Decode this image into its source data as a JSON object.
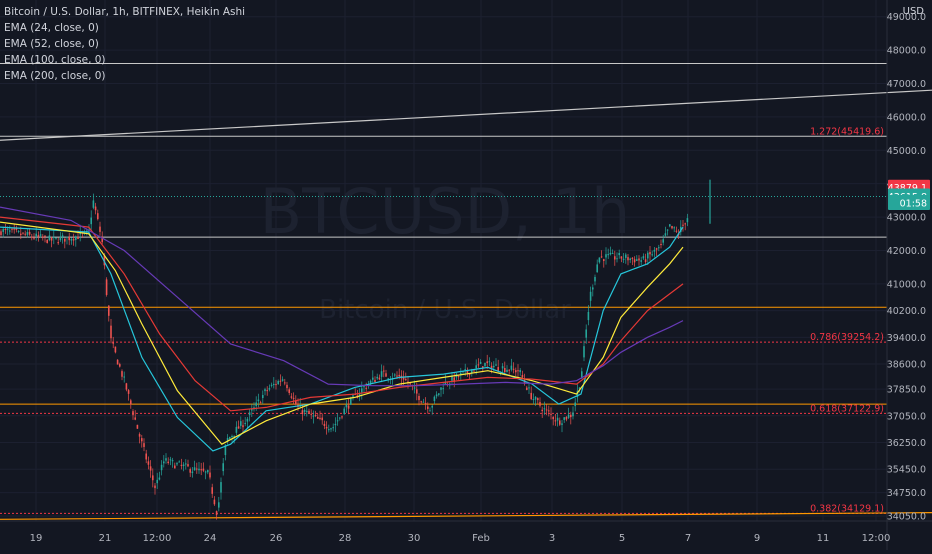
{
  "legend": {
    "title": "Bitcoin / U.S. Dollar, 1h, BITFINEX, Heikin Ashi",
    "ema1": "EMA (24, close, 0)",
    "ema2": "EMA (52, close, 0)",
    "ema3": "EMA (100, close, 0)",
    "ema4": "EMA (200, close, 0)"
  },
  "currency": "USD",
  "watermark": {
    "symbol": "BTCUSD, 1h",
    "name": "Bitcoin / U.S. Dollar"
  },
  "colors": {
    "background": "#131722",
    "up": "#26a69a",
    "down": "#ef5350",
    "ema24": "#26c6da",
    "ema52": "#ffeb3b",
    "ema100": "#e53935",
    "ema200": "#673ab7",
    "fib_orange": "#ff9800",
    "fib_red": "#f23645",
    "hline": "#c8c8c8"
  },
  "price_badges": [
    {
      "label": "43879.1",
      "value": 43879.1,
      "color": "#f23645"
    },
    {
      "label": "43615.8",
      "value": 43615.8,
      "color": "#26a69a"
    },
    {
      "label": "01:58",
      "value": 43420,
      "color": "#26a69a"
    }
  ],
  "fib_labels": [
    {
      "text": "1.272(45419.6)",
      "value": 45419.6
    },
    {
      "text": "0.786(39254.2)",
      "value": 39254.2
    },
    {
      "text": "0.618(37122.9)",
      "value": 37122.9
    },
    {
      "text": "0.382(34129.1)",
      "value": 34129.1
    }
  ],
  "chart_data": {
    "type": "candlestick",
    "title": "Bitcoin / U.S. Dollar, 1h, BITFINEX, Heikin Ashi",
    "ylim": [
      33900,
      49500
    ],
    "y_ticks": [
      "49000.0",
      "48000.0",
      "47000.0",
      "46000.0",
      "45000.0",
      "44000.0",
      "43000.0",
      "42000.0",
      "41000.0",
      "40200.0",
      "39400.0",
      "38600.0",
      "37850.0",
      "37050.0",
      "36250.0",
      "35450.0",
      "34750.0",
      "34050.0"
    ],
    "x_ticks": [
      "19",
      "21",
      "12:00",
      "24",
      "26",
      "28",
      "30",
      "Feb",
      "3",
      "5",
      "7",
      "9",
      "11",
      "12:00"
    ],
    "horizontal_lines": [
      {
        "value": 47600,
        "style": "solid",
        "color": "hline"
      },
      {
        "value": 45419.6,
        "style": "solid",
        "color": "hline"
      },
      {
        "value": 42400,
        "style": "solid",
        "color": "hline"
      },
      {
        "value": 40300,
        "style": "solid",
        "color": "fib_orange"
      },
      {
        "value": 39254.2,
        "style": "dotted",
        "color": "fib_red"
      },
      {
        "value": 37400,
        "style": "solid",
        "color": "fib_orange"
      },
      {
        "value": 37122.9,
        "style": "dotted",
        "color": "fib_red"
      },
      {
        "value": 34129.1,
        "style": "dotted",
        "color": "fib_red"
      }
    ],
    "trend_lines": [
      {
        "x0": 0,
        "y0": 45300,
        "x1": 1,
        "y1": 46800,
        "color": "hline"
      },
      {
        "x0": 0,
        "y0": 33950,
        "x1": 1,
        "y1": 34150,
        "color": "fib_orange"
      }
    ],
    "current_price": 43615.8,
    "price_path": [
      [
        0,
        42600
      ],
      [
        0.06,
        42300
      ],
      [
        0.1,
        42500
      ],
      [
        0.105,
        43500
      ],
      [
        0.115,
        42300
      ],
      [
        0.125,
        39300
      ],
      [
        0.14,
        38100
      ],
      [
        0.16,
        36200
      ],
      [
        0.175,
        34900
      ],
      [
        0.185,
        35700
      ],
      [
        0.21,
        35500
      ],
      [
        0.235,
        35300
      ],
      [
        0.245,
        34100
      ],
      [
        0.255,
        36300
      ],
      [
        0.28,
        37000
      ],
      [
        0.3,
        37800
      ],
      [
        0.32,
        38200
      ],
      [
        0.335,
        37300
      ],
      [
        0.36,
        36900
      ],
      [
        0.375,
        36700
      ],
      [
        0.39,
        37300
      ],
      [
        0.41,
        37900
      ],
      [
        0.43,
        38300
      ],
      [
        0.455,
        38200
      ],
      [
        0.47,
        37700
      ],
      [
        0.485,
        37300
      ],
      [
        0.5,
        38000
      ],
      [
        0.53,
        38400
      ],
      [
        0.545,
        38600
      ],
      [
        0.565,
        38500
      ],
      [
        0.585,
        38400
      ],
      [
        0.6,
        37600
      ],
      [
        0.615,
        37200
      ],
      [
        0.63,
        36900
      ],
      [
        0.645,
        37100
      ],
      [
        0.655,
        38200
      ],
      [
        0.665,
        40600
      ],
      [
        0.675,
        41800
      ],
      [
        0.7,
        41800
      ],
      [
        0.725,
        41700
      ],
      [
        0.745,
        42100
      ],
      [
        0.755,
        42700
      ],
      [
        0.765,
        42500
      ],
      [
        0.775,
        43000
      ]
    ],
    "series": [
      {
        "name": "EMA (24, close, 0)",
        "color": "ema24",
        "points": [
          [
            0,
            42700
          ],
          [
            0.1,
            42550
          ],
          [
            0.125,
            41300
          ],
          [
            0.16,
            38800
          ],
          [
            0.2,
            37000
          ],
          [
            0.24,
            36000
          ],
          [
            0.26,
            36200
          ],
          [
            0.3,
            37200
          ],
          [
            0.35,
            37400
          ],
          [
            0.4,
            37900
          ],
          [
            0.45,
            38200
          ],
          [
            0.5,
            38300
          ],
          [
            0.55,
            38500
          ],
          [
            0.6,
            38000
          ],
          [
            0.63,
            37400
          ],
          [
            0.655,
            37700
          ],
          [
            0.68,
            40200
          ],
          [
            0.7,
            41300
          ],
          [
            0.73,
            41600
          ],
          [
            0.755,
            42100
          ],
          [
            0.77,
            42700
          ]
        ]
      },
      {
        "name": "EMA (52, close, 0)",
        "color": "ema52",
        "points": [
          [
            0,
            42850
          ],
          [
            0.1,
            42500
          ],
          [
            0.13,
            41400
          ],
          [
            0.16,
            39800
          ],
          [
            0.2,
            37800
          ],
          [
            0.25,
            36200
          ],
          [
            0.3,
            36900
          ],
          [
            0.35,
            37400
          ],
          [
            0.4,
            37600
          ],
          [
            0.45,
            38000
          ],
          [
            0.5,
            38200
          ],
          [
            0.55,
            38400
          ],
          [
            0.6,
            38100
          ],
          [
            0.65,
            37700
          ],
          [
            0.68,
            38800
          ],
          [
            0.7,
            40000
          ],
          [
            0.73,
            40900
          ],
          [
            0.755,
            41600
          ],
          [
            0.77,
            42100
          ]
        ]
      },
      {
        "name": "EMA (100, close, 0)",
        "color": "ema100",
        "points": [
          [
            0,
            43000
          ],
          [
            0.1,
            42700
          ],
          [
            0.14,
            41300
          ],
          [
            0.18,
            39500
          ],
          [
            0.22,
            38100
          ],
          [
            0.26,
            37200
          ],
          [
            0.3,
            37300
          ],
          [
            0.35,
            37600
          ],
          [
            0.4,
            37700
          ],
          [
            0.45,
            37900
          ],
          [
            0.5,
            38050
          ],
          [
            0.55,
            38200
          ],
          [
            0.6,
            38150
          ],
          [
            0.65,
            38000
          ],
          [
            0.68,
            38600
          ],
          [
            0.7,
            39300
          ],
          [
            0.73,
            40200
          ],
          [
            0.755,
            40700
          ],
          [
            0.77,
            41000
          ]
        ]
      },
      {
        "name": "EMA (200, close, 0)",
        "color": "ema200",
        "points": [
          [
            0,
            43300
          ],
          [
            0.08,
            42900
          ],
          [
            0.14,
            42000
          ],
          [
            0.2,
            40600
          ],
          [
            0.26,
            39200
          ],
          [
            0.32,
            38700
          ],
          [
            0.37,
            38000
          ],
          [
            0.42,
            37950
          ],
          [
            0.47,
            37950
          ],
          [
            0.52,
            38000
          ],
          [
            0.57,
            38050
          ],
          [
            0.62,
            38000
          ],
          [
            0.65,
            38100
          ],
          [
            0.68,
            38550
          ],
          [
            0.7,
            38950
          ],
          [
            0.73,
            39400
          ],
          [
            0.755,
            39700
          ],
          [
            0.77,
            39900
          ]
        ]
      }
    ]
  }
}
